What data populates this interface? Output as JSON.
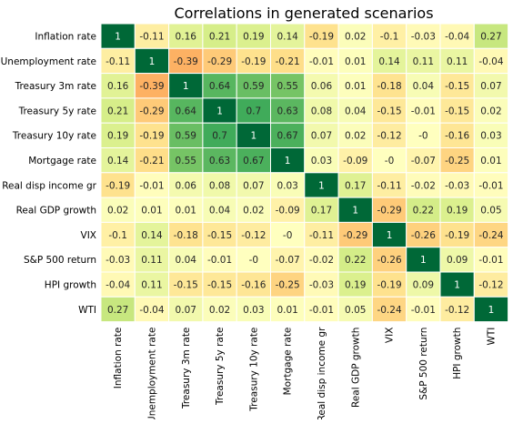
{
  "chart_data": {
    "type": "heatmap",
    "title": "Correlations in generated scenarios",
    "labels": [
      "Inflation rate",
      "Unemployment rate",
      "Treasury 3m rate",
      "Treasury 5y rate",
      "Treasury 10y rate",
      "Mortgage rate",
      "Real disp income gr",
      "Real GDP growth",
      "VIX",
      "S&P 500 return",
      "HPI growth",
      "WTI"
    ],
    "values": [
      [
        1,
        -0.11,
        0.16,
        0.21,
        0.19,
        0.14,
        -0.19,
        0.02,
        -0.1,
        -0.03,
        -0.04,
        0.27
      ],
      [
        -0.11,
        1,
        -0.39,
        -0.29,
        -0.19,
        -0.21,
        -0.01,
        0.01,
        0.14,
        0.11,
        0.11,
        -0.04
      ],
      [
        0.16,
        -0.39,
        1,
        0.64,
        0.59,
        0.55,
        0.06,
        0.01,
        -0.18,
        0.04,
        -0.15,
        0.07
      ],
      [
        0.21,
        -0.29,
        0.64,
        1,
        0.7,
        0.63,
        0.08,
        0.04,
        -0.15,
        -0.01,
        -0.15,
        0.02
      ],
      [
        0.19,
        -0.19,
        0.59,
        0.7,
        1,
        0.67,
        0.07,
        0.02,
        -0.12,
        "-0",
        -0.16,
        0.03
      ],
      [
        0.14,
        -0.21,
        0.55,
        0.63,
        0.67,
        1,
        0.03,
        -0.09,
        "-0",
        -0.07,
        -0.25,
        0.01
      ],
      [
        -0.19,
        -0.01,
        0.06,
        0.08,
        0.07,
        0.03,
        1,
        0.17,
        -0.11,
        -0.02,
        -0.03,
        -0.01
      ],
      [
        0.02,
        0.01,
        0.01,
        0.04,
        0.02,
        -0.09,
        0.17,
        1,
        -0.29,
        0.22,
        0.19,
        0.05
      ],
      [
        -0.1,
        0.14,
        -0.18,
        -0.15,
        -0.12,
        "-0",
        -0.11,
        -0.29,
        1,
        -0.26,
        -0.19,
        -0.24
      ],
      [
        -0.03,
        0.11,
        0.04,
        -0.01,
        "-0",
        -0.07,
        -0.02,
        0.22,
        -0.26,
        1,
        0.09,
        -0.01
      ],
      [
        -0.04,
        0.11,
        -0.15,
        -0.15,
        -0.16,
        -0.25,
        -0.03,
        0.19,
        -0.19,
        0.09,
        1,
        -0.12
      ],
      [
        0.27,
        -0.04,
        0.07,
        0.02,
        0.03,
        0.01,
        -0.01,
        0.05,
        -0.24,
        -0.01,
        -0.12,
        1
      ]
    ],
    "color_scale": "RdYlGn",
    "vmin": -1,
    "vmax": 1,
    "cell_border_color": "#ffffff"
  }
}
